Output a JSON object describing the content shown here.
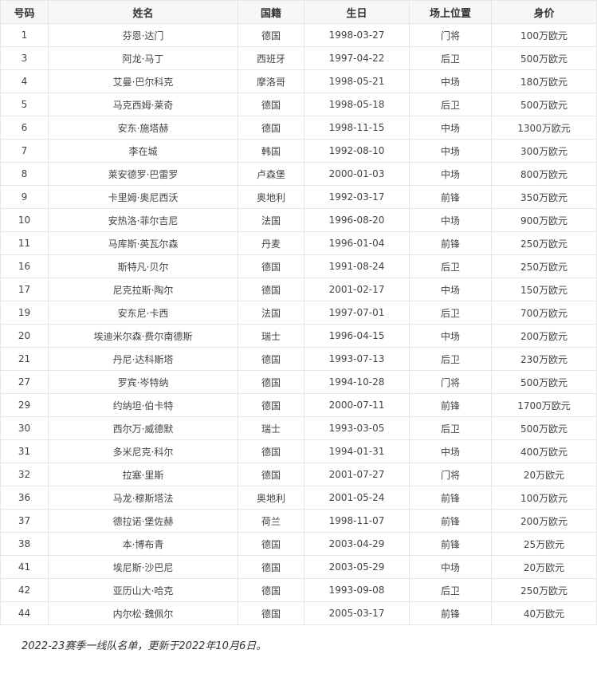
{
  "table": {
    "headers": [
      "号码",
      "姓名",
      "国籍",
      "生日",
      "场上位置",
      "身价"
    ],
    "rows": [
      [
        "1",
        "芬恩·达门",
        "德国",
        "1998-03-27",
        "门将",
        "100万欧元"
      ],
      [
        "3",
        "阿龙·马丁",
        "西班牙",
        "1997-04-22",
        "后卫",
        "500万欧元"
      ],
      [
        "4",
        "艾曼·巴尔科克",
        "摩洛哥",
        "1998-05-21",
        "中场",
        "180万欧元"
      ],
      [
        "5",
        "马克西姆·莱奇",
        "德国",
        "1998-05-18",
        "后卫",
        "500万欧元"
      ],
      [
        "6",
        "安东·施塔赫",
        "德国",
        "1998-11-15",
        "中场",
        "1300万欧元"
      ],
      [
        "7",
        "李在城",
        "韩国",
        "1992-08-10",
        "中场",
        "300万欧元"
      ],
      [
        "8",
        "莱安德罗·巴雷罗",
        "卢森堡",
        "2000-01-03",
        "中场",
        "800万欧元"
      ],
      [
        "9",
        "卡里姆·奥尼西沃",
        "奥地利",
        "1992-03-17",
        "前锋",
        "350万欧元"
      ],
      [
        "10",
        "安热洛·菲尔吉尼",
        "法国",
        "1996-08-20",
        "中场",
        "900万欧元"
      ],
      [
        "11",
        "马库斯·英瓦尔森",
        "丹麦",
        "1996-01-04",
        "前锋",
        "250万欧元"
      ],
      [
        "16",
        "斯特凡·贝尔",
        "德国",
        "1991-08-24",
        "后卫",
        "250万欧元"
      ],
      [
        "17",
        "尼克拉斯·陶尔",
        "德国",
        "2001-02-17",
        "中场",
        "150万欧元"
      ],
      [
        "19",
        "安东尼·卡西",
        "法国",
        "1997-07-01",
        "后卫",
        "700万欧元"
      ],
      [
        "20",
        "埃迪米尔森·费尔南德斯",
        "瑞士",
        "1996-04-15",
        "中场",
        "200万欧元"
      ],
      [
        "21",
        "丹尼·达科斯塔",
        "德国",
        "1993-07-13",
        "后卫",
        "230万欧元"
      ],
      [
        "27",
        "罗宾·岑特纳",
        "德国",
        "1994-10-28",
        "门将",
        "500万欧元"
      ],
      [
        "29",
        "约纳坦·伯卡特",
        "德国",
        "2000-07-11",
        "前锋",
        "1700万欧元"
      ],
      [
        "30",
        "西尔万·威德默",
        "瑞士",
        "1993-03-05",
        "后卫",
        "500万欧元"
      ],
      [
        "31",
        "多米尼克·科尔",
        "德国",
        "1994-01-31",
        "中场",
        "400万欧元"
      ],
      [
        "32",
        "拉塞·里斯",
        "德国",
        "2001-07-27",
        "门将",
        "20万欧元"
      ],
      [
        "36",
        "马龙·穆斯塔法",
        "奥地利",
        "2001-05-24",
        "前锋",
        "100万欧元"
      ],
      [
        "37",
        "德拉诺·堡佐赫",
        "荷兰",
        "1998-11-07",
        "前锋",
        "200万欧元"
      ],
      [
        "38",
        "本·博布青",
        "德国",
        "2003-04-29",
        "前锋",
        "25万欧元"
      ],
      [
        "41",
        "埃尼斯·沙巴尼",
        "德国",
        "2003-05-29",
        "中场",
        "20万欧元"
      ],
      [
        "42",
        "亚历山大·哈克",
        "德国",
        "1993-09-08",
        "后卫",
        "250万欧元"
      ],
      [
        "44",
        "内尔松·魏佩尔",
        "德国",
        "2005-03-17",
        "前锋",
        "40万欧元"
      ]
    ]
  },
  "caption": "2022-23赛季一线队名单，更新于2022年10月6日。"
}
